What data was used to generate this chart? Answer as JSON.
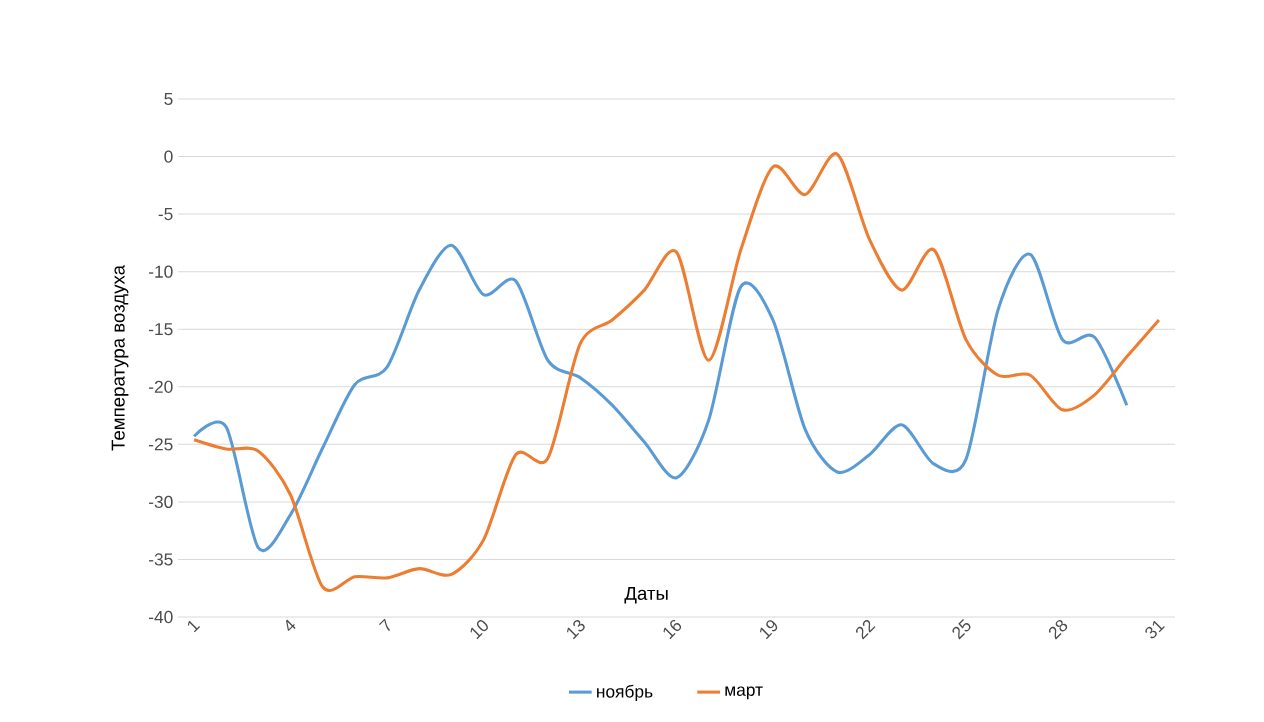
{
  "chart_data": {
    "type": "line",
    "xlabel": "Даты",
    "ylabel": "Температура воздуха",
    "categories": [
      "1",
      null,
      null,
      "4",
      null,
      null,
      "7",
      null,
      null,
      "10",
      null,
      null,
      "13",
      null,
      null,
      "16",
      null,
      null,
      "19",
      null,
      null,
      "22",
      null,
      null,
      "25",
      null,
      null,
      "28",
      null,
      null,
      "31"
    ],
    "series": [
      {
        "name": "ноябрь",
        "color": "#5b9bd5",
        "values": [
          -24.3,
          -23.5,
          -34,
          -31.1,
          -25.3,
          -19.8,
          -18.3,
          -11.6,
          -7.7,
          -12,
          -10.8,
          -17.7,
          -19.2,
          -21.6,
          -24.8,
          -27.9,
          -22.9,
          -11.3,
          -14.2,
          -23.7,
          -27.4,
          -25.9,
          -23.3,
          -26.7,
          -26.3,
          -13.3,
          -8.5,
          -15.9,
          -15.7,
          -21.6,
          null
        ]
      },
      {
        "name": "март",
        "color": "#ed7d31",
        "values": [
          -24.6,
          -25.4,
          -25.6,
          -29.4,
          -37.4,
          -36.5,
          -36.6,
          -35.8,
          -36.3,
          -33.3,
          -25.9,
          -26.2,
          -16.3,
          -14.2,
          -11.6,
          -8.3,
          -17.7,
          -8.1,
          -0.9,
          -3.3,
          0.2,
          -7.2,
          -11.6,
          -8.1,
          -15.9,
          -19,
          -19,
          -22,
          -20.7,
          -17.4,
          -14.2
        ]
      }
    ],
    "ylim": [
      -40,
      5
    ],
    "yticks": [
      -40,
      -35,
      -30,
      -25,
      -20,
      -15,
      -10,
      -5,
      0,
      5
    ],
    "grid": "y",
    "legend": "bottom"
  }
}
